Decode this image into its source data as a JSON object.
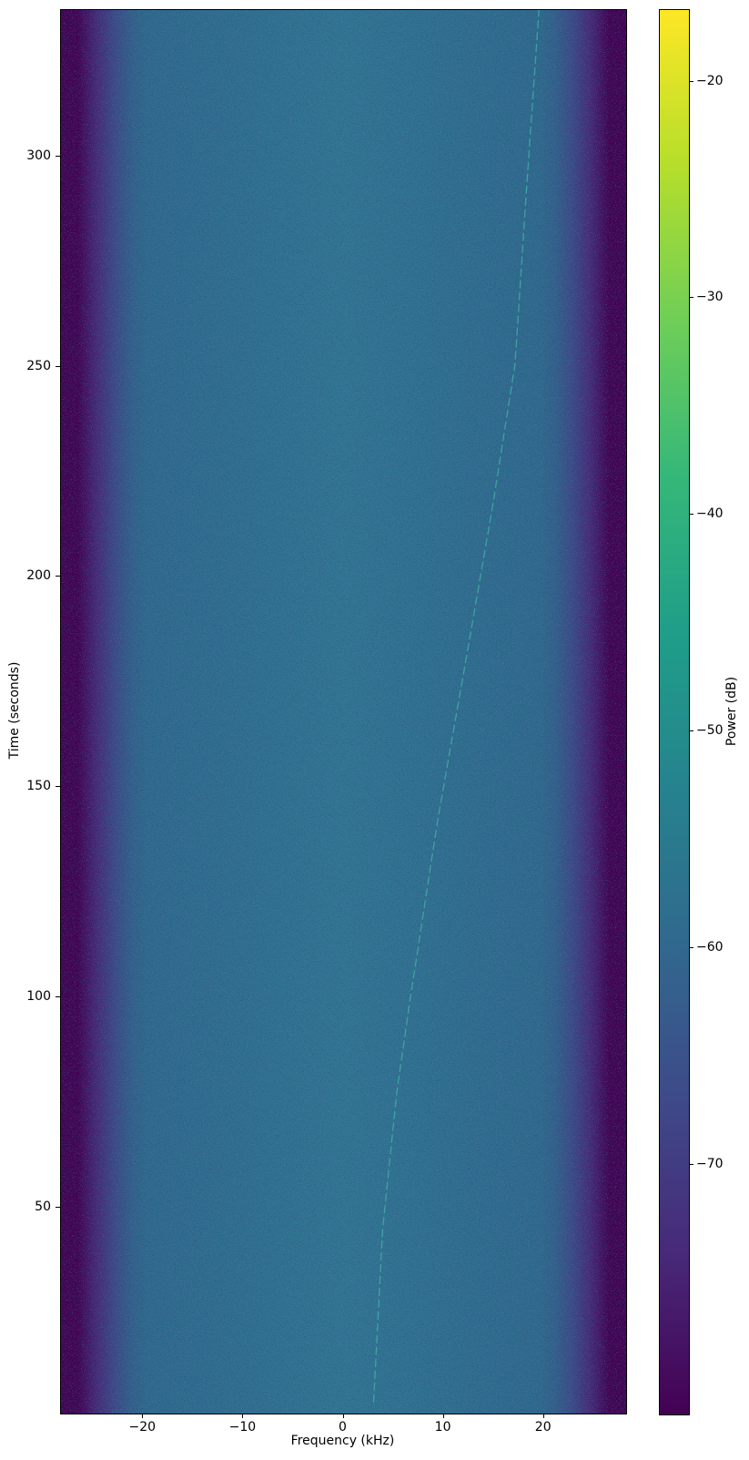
{
  "figure": {
    "background": "#ffffff"
  },
  "chart_data": {
    "type": "heatmap",
    "subtype": "spectrogram-waterfall",
    "title": "",
    "xlabel": "Frequency (kHz)",
    "ylabel": "Time (seconds)",
    "colorbar_label": "Power (dB)",
    "x_range_khz": [
      -28.2,
      28.2
    ],
    "y_range_s": [
      0.96,
      334.88
    ],
    "colorbar_range_db": [
      -81.5,
      -16.7
    ],
    "x_ticks": [
      -20,
      -10,
      0,
      10,
      20
    ],
    "x_tick_labels": [
      "−20",
      "−10",
      "0",
      "10",
      "20"
    ],
    "y_ticks": [
      50,
      100,
      150,
      200,
      250,
      300
    ],
    "y_tick_labels": [
      "50",
      "100",
      "150",
      "200",
      "250",
      "300"
    ],
    "colorbar_ticks": [
      -20,
      -30,
      -40,
      -50,
      -60,
      -70
    ],
    "colorbar_tick_labels": [
      "−20",
      "−30",
      "−40",
      "−50",
      "−60",
      "−70"
    ],
    "noise_floor_db": -60,
    "edge_rolloff": {
      "passband_khz": 20.0,
      "stopband_khz": 26.5
    },
    "grid": "off",
    "legend": "none",
    "colormap": "viridis",
    "viridis_stops": [
      "#440154",
      "#482878",
      "#3e4989",
      "#31688e",
      "#26828e",
      "#1f9e89",
      "#35b779",
      "#6ece58",
      "#b5de2b",
      "#fde725"
    ],
    "colors": {
      "body": "#31688e",
      "body_center": "#337494",
      "transition": "#35608c",
      "edge": "#440154",
      "speckle_teal": "#2f9f93",
      "speckle_dark": "#2a3a72",
      "signal": "#41b2a4",
      "axis": "#000000"
    },
    "signal_track": {
      "description": "faint curved carrier trace, time (s) vs frequency (kHz)",
      "points_time_freq": [
        [
          3.6,
          3.0
        ],
        [
          44.7,
          3.9
        ],
        [
          77.2,
          5.3
        ],
        [
          98.9,
          6.6
        ],
        [
          142.2,
          9.4
        ],
        [
          185.5,
          12.6
        ],
        [
          215.8,
          14.8
        ],
        [
          250.4,
          17.1
        ],
        [
          293.7,
          18.3
        ],
        [
          334.9,
          19.5
        ]
      ]
    }
  }
}
